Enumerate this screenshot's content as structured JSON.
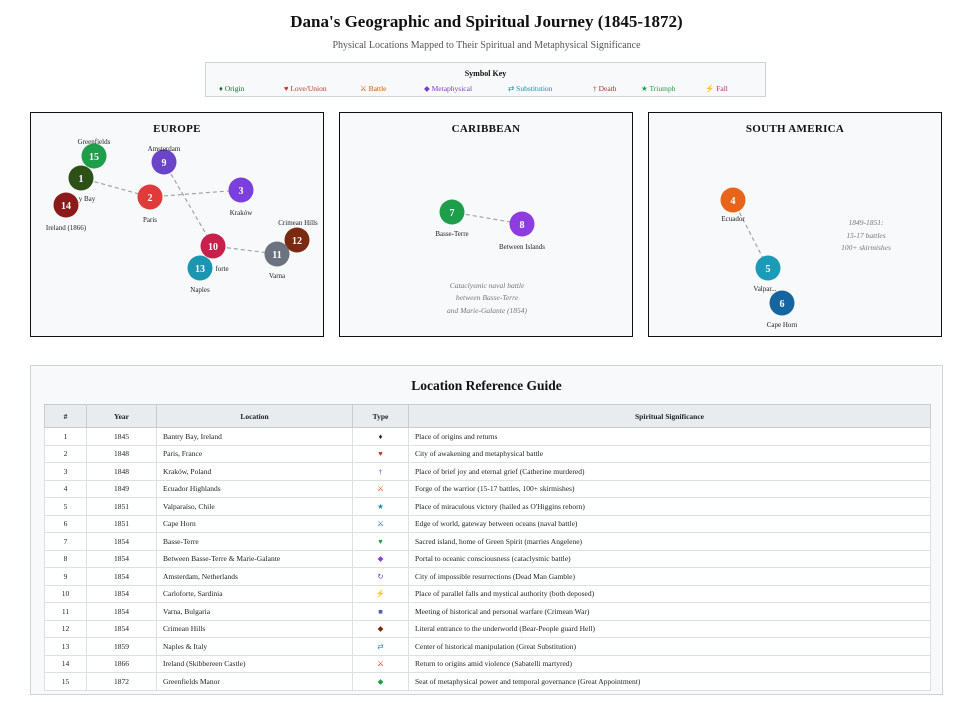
{
  "header": {
    "title": "Dana's Geographic and Spiritual Journey (1845-1872)",
    "subtitle": "Physical Locations Mapped to Their Spiritual and Metaphysical Significance"
  },
  "key": {
    "title": "Symbol Key",
    "items": [
      {
        "label": "♦ Origin",
        "color": "#1e6b2e"
      },
      {
        "label": "♥ Love/Union",
        "color": "#c0392b"
      },
      {
        "label": "⚔ Battle",
        "color": "#d35400"
      },
      {
        "label": "◆ Metaphysical",
        "color": "#7b3fc4"
      },
      {
        "label": "⇄ Substitution",
        "color": "#1a8fb0"
      },
      {
        "label": "† Death",
        "color": "#b03030"
      },
      {
        "label": "★ Triumph",
        "color": "#1e9e4a"
      },
      {
        "label": "⚡ Fall",
        "color": "#b0306e"
      }
    ]
  },
  "panels": {
    "europe": {
      "title": "EUROPE",
      "nodes": [
        {
          "num": "1",
          "label": "",
          "color": "#2d5016"
        },
        {
          "num": "2",
          "label": "Paris",
          "color": "#e03a3a"
        },
        {
          "num": "3",
          "label": "Kraków",
          "color": "#7b3fe0"
        },
        {
          "num": "9",
          "label": "Amsterdam",
          "color": "#6a45c8"
        },
        {
          "num": "10",
          "label": "forte",
          "color": "#c8204a"
        },
        {
          "num": "11",
          "label": "Varna",
          "color": "#6b7280"
        },
        {
          "num": "12",
          "label": "Crimean Hills",
          "color": "#7b2a12"
        },
        {
          "num": "13",
          "label": "Naples",
          "color": "#1a96b0"
        },
        {
          "num": "14",
          "label": "Ireland (1866)",
          "color": "#8b1a1a"
        },
        {
          "num": "15",
          "label": "Greenfields",
          "color": "#1e9e4a"
        }
      ],
      "extra_labels": [
        "y Bay"
      ]
    },
    "caribbean": {
      "title": "CARIBBEAN",
      "nodes": [
        {
          "num": "7",
          "label": "Basse-Terre",
          "color": "#1e9e4a"
        },
        {
          "num": "8",
          "label": "Between Islands",
          "color": "#8e3be0"
        }
      ],
      "note": [
        "Cataclysmic naval battle",
        "between Basse-Terre",
        "and Marie-Galante (1854)"
      ]
    },
    "south_america": {
      "title": "SOUTH AMERICA",
      "nodes": [
        {
          "num": "4",
          "label": "Ecuador",
          "color": "#e8641a"
        },
        {
          "num": "5",
          "label": "Valpar...",
          "color": "#1a9bb8"
        },
        {
          "num": "6",
          "label": "Cape Horn",
          "color": "#1565a0"
        }
      ],
      "note": [
        "1849-1851:",
        "15-17 battles",
        "100+ skirmishes"
      ]
    }
  },
  "reference": {
    "title": "Location Reference Guide",
    "columns": [
      "#",
      "Year",
      "Location",
      "Type",
      "Spiritual Significance"
    ],
    "rows": [
      {
        "num": "1",
        "year": "1845",
        "location": "Bantry Bay, Ireland",
        "type": "♦",
        "type_color": "#222222",
        "significance": "Place of origins and returns"
      },
      {
        "num": "2",
        "year": "1848",
        "location": "Paris, France",
        "type": "♥",
        "type_color": "#c0392b",
        "significance": "City of awakening and metaphysical battle"
      },
      {
        "num": "3",
        "year": "1848",
        "location": "Kraków, Poland",
        "type": "†",
        "type_color": "#7b3fc4",
        "significance": "Place of brief joy and eternal grief (Catherine murdered)"
      },
      {
        "num": "4",
        "year": "1849",
        "location": "Ecuador Highlands",
        "type": "⚔",
        "type_color": "#d35400",
        "significance": "Forge of the warrior (15-17 battles, 100+ skirmishes)"
      },
      {
        "num": "5",
        "year": "1851",
        "location": "Valparaíso, Chile",
        "type": "★",
        "type_color": "#1a8fb0",
        "significance": "Place of miraculous victory (hailed as O'Higgins reborn)"
      },
      {
        "num": "6",
        "year": "1851",
        "location": "Cape Horn",
        "type": "⚔",
        "type_color": "#1565a0",
        "significance": "Edge of world, gateway between oceans (naval battle)"
      },
      {
        "num": "7",
        "year": "1854",
        "location": "Basse-Terre",
        "type": "♥",
        "type_color": "#1e9e4a",
        "significance": "Sacred island, home of Green Spirit (marries Angelene)"
      },
      {
        "num": "8",
        "year": "1854",
        "location": "Between Basse-Terre & Marie-Galante",
        "type": "◆",
        "type_color": "#8e3be0",
        "significance": "Portal to oceanic consciousness (cataclysmic battle)"
      },
      {
        "num": "9",
        "year": "1854",
        "location": "Amsterdam, Netherlands",
        "type": "↻",
        "type_color": "#6a45c8",
        "significance": "City of impossible resurrections (Dead Man Gamble)"
      },
      {
        "num": "10",
        "year": "1854",
        "location": "Carloforte, Sardinia",
        "type": "⚡",
        "type_color": "#c8204a",
        "significance": "Place of parallel falls and mystical authority (both deposed)"
      },
      {
        "num": "11",
        "year": "1854",
        "location": "Varna, Bulgaria",
        "type": "■",
        "type_color": "#5060a0",
        "significance": "Meeting of historical and personal warfare (Crimean War)"
      },
      {
        "num": "12",
        "year": "1854",
        "location": "Crimean Hills",
        "type": "◆",
        "type_color": "#7b2a12",
        "significance": "Literal entrance to the underworld (Bear-People guard Hell)"
      },
      {
        "num": "13",
        "year": "1859",
        "location": "Naples & Italy",
        "type": "⇄",
        "type_color": "#1a96b0",
        "significance": "Center of historical manipulation (Great Substitution)"
      },
      {
        "num": "14",
        "year": "1866",
        "location": "Ireland (Skibbereen Castle)",
        "type": "⚔",
        "type_color": "#c0392b",
        "significance": "Return to origins amid violence (Sabatelli martyred)"
      },
      {
        "num": "15",
        "year": "1872",
        "location": "Greenfields Manor",
        "type": "◆",
        "type_color": "#1e9e4a",
        "significance": "Seat of metaphysical power and temporal governance (Great Appointment)"
      }
    ]
  }
}
